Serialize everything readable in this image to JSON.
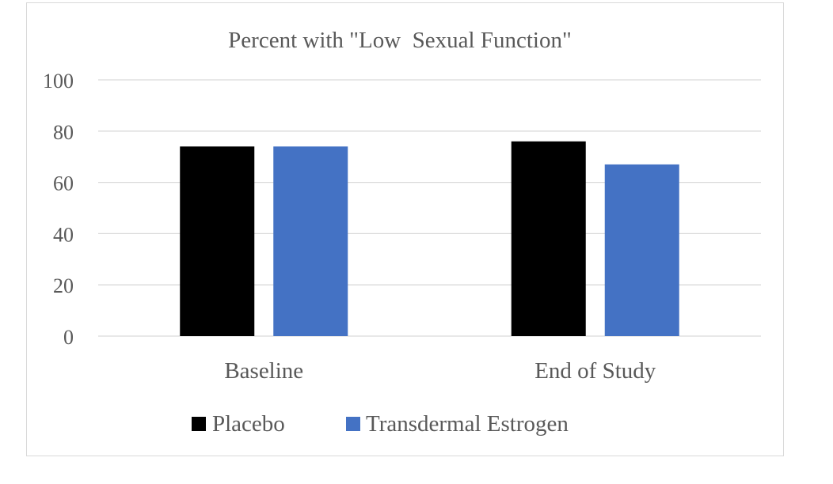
{
  "chart_data": {
    "type": "bar",
    "title": "Percent with \"Low  Sexual Function\"",
    "xlabel": "",
    "ylabel": "",
    "categories": [
      "Baseline",
      "End of Study"
    ],
    "series": [
      {
        "name": "Placebo",
        "values": [
          74,
          76
        ],
        "color": "#000000"
      },
      {
        "name": "Transdermal Estrogen",
        "values": [
          74,
          67
        ],
        "color": "#4472c4"
      }
    ],
    "ylim": [
      0,
      100
    ],
    "yticks": [
      0,
      20,
      40,
      60,
      80,
      100
    ],
    "grid": true,
    "legend": "bottom"
  }
}
